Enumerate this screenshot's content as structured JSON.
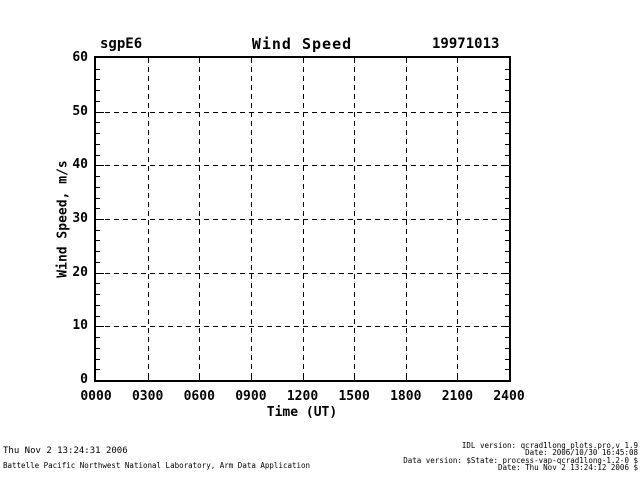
{
  "chart_data": {
    "type": "line",
    "title": "Wind Speed",
    "site_label": "sgpE6",
    "date_label": "19971013",
    "xlabel": "Time (UT)",
    "ylabel": "Wind Speed, m/s",
    "xlim": [
      0,
      2400
    ],
    "ylim": [
      0,
      60
    ],
    "x_ticks": [
      {
        "label": "0000",
        "value": 0
      },
      {
        "label": "0300",
        "value": 300
      },
      {
        "label": "0600",
        "value": 600
      },
      {
        "label": "0900",
        "value": 900
      },
      {
        "label": "1200",
        "value": 1200
      },
      {
        "label": "1500",
        "value": 1500
      },
      {
        "label": "1800",
        "value": 1800
      },
      {
        "label": "2100",
        "value": 2100
      },
      {
        "label": "2400",
        "value": 2400
      }
    ],
    "y_ticks": [
      {
        "label": "0",
        "value": 0
      },
      {
        "label": "10",
        "value": 10
      },
      {
        "label": "20",
        "value": 20
      },
      {
        "label": "30",
        "value": 30
      },
      {
        "label": "40",
        "value": 40
      },
      {
        "label": "50",
        "value": 50
      },
      {
        "label": "60",
        "value": 60
      }
    ],
    "y_minor_step": 2,
    "grid": {
      "style": "dashed",
      "x_major": true,
      "y_major": true
    },
    "legend": null,
    "series": []
  },
  "footer": {
    "left": [
      "Thu Nov  2 13:24:31 2006",
      "Battelle Pacific Northwest National Laboratory, Arm Data Application"
    ],
    "right": [
      "IDL version: qcrad1long_plots.pro,v 1.9",
      "Date: 2006/10/30 16:45:08",
      "Data version: $State: process-vap-qcrad1long-1.2-0 $",
      "Date: Thu Nov  2 13:24:12 2006 $"
    ]
  }
}
